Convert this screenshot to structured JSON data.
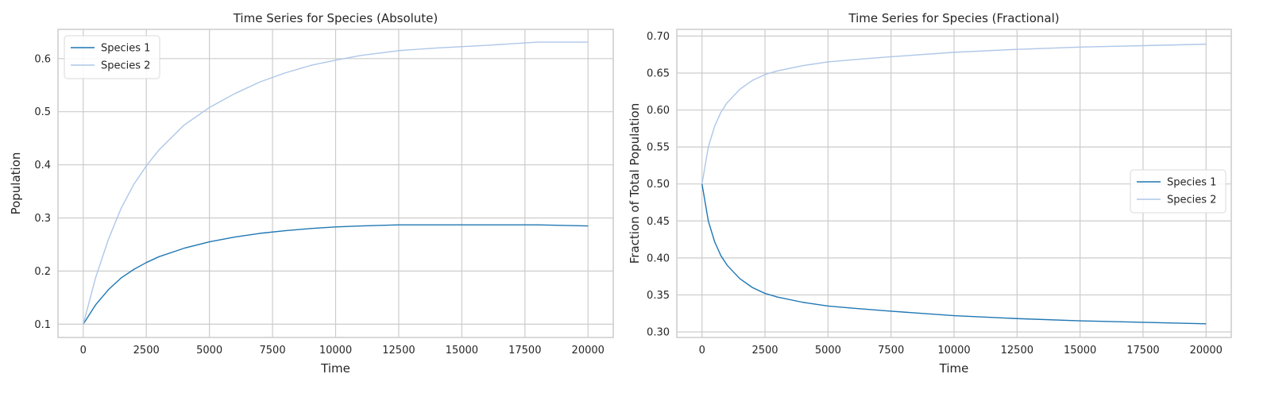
{
  "chart_data": [
    {
      "type": "line",
      "title": "Time Series for Species (Absolute)",
      "xlabel": "Time",
      "ylabel": "Population",
      "xlim": [
        -1000,
        21000
      ],
      "ylim": [
        0.075,
        0.655
      ],
      "xticks": [
        0,
        2500,
        5000,
        7500,
        10000,
        12500,
        15000,
        17500,
        20000
      ],
      "yticks": [
        0.1,
        0.2,
        0.3,
        0.4,
        0.5,
        0.6
      ],
      "ytick_labels": [
        "0.1",
        "0.2",
        "0.3",
        "0.4",
        "0.5",
        "0.6"
      ],
      "grid": true,
      "legend_position": "top-left",
      "x": [
        0,
        500,
        1000,
        1500,
        2000,
        2500,
        3000,
        4000,
        5000,
        6000,
        7000,
        8000,
        9000,
        10000,
        11000,
        12500,
        14000,
        16000,
        18000,
        20000
      ],
      "series": [
        {
          "name": "Species 1",
          "color": "#1f77b4",
          "values": [
            0.1,
            0.137,
            0.165,
            0.187,
            0.203,
            0.216,
            0.227,
            0.243,
            0.255,
            0.264,
            0.271,
            0.276,
            0.28,
            0.283,
            0.285,
            0.287,
            0.287,
            0.287,
            0.287,
            0.285
          ]
        },
        {
          "name": "Species 2",
          "color": "#aec7e8",
          "values": [
            0.1,
            0.189,
            0.26,
            0.318,
            0.363,
            0.398,
            0.428,
            0.475,
            0.508,
            0.534,
            0.556,
            0.573,
            0.587,
            0.597,
            0.606,
            0.615,
            0.62,
            0.625,
            0.631,
            0.631
          ]
        }
      ]
    },
    {
      "type": "line",
      "title": "Time Series for Species (Fractional)",
      "xlabel": "Time",
      "ylabel": "Fraction of Total Population",
      "xlim": [
        -1000,
        21000
      ],
      "ylim": [
        0.2925,
        0.709
      ],
      "xticks": [
        0,
        2500,
        5000,
        7500,
        10000,
        12500,
        15000,
        17500,
        20000
      ],
      "yticks": [
        0.3,
        0.35,
        0.4,
        0.45,
        0.5,
        0.55,
        0.6,
        0.65,
        0.7
      ],
      "ytick_labels": [
        "0.30",
        "0.35",
        "0.40",
        "0.45",
        "0.50",
        "0.55",
        "0.60",
        "0.65",
        "0.70"
      ],
      "grid": true,
      "legend_position": "center-right",
      "x": [
        0,
        250,
        500,
        750,
        1000,
        1500,
        2000,
        2500,
        3000,
        4000,
        5000,
        6000,
        7500,
        10000,
        12500,
        15000,
        17500,
        20000
      ],
      "series": [
        {
          "name": "Species 1",
          "color": "#1f77b4",
          "values": [
            0.5,
            0.45,
            0.422,
            0.403,
            0.39,
            0.372,
            0.36,
            0.352,
            0.347,
            0.34,
            0.335,
            0.332,
            0.328,
            0.322,
            0.318,
            0.315,
            0.313,
            0.311
          ]
        },
        {
          "name": "Species 2",
          "color": "#aec7e8",
          "values": [
            0.5,
            0.55,
            0.578,
            0.597,
            0.61,
            0.628,
            0.64,
            0.648,
            0.653,
            0.66,
            0.665,
            0.668,
            0.672,
            0.678,
            0.682,
            0.685,
            0.687,
            0.689
          ]
        }
      ]
    }
  ]
}
